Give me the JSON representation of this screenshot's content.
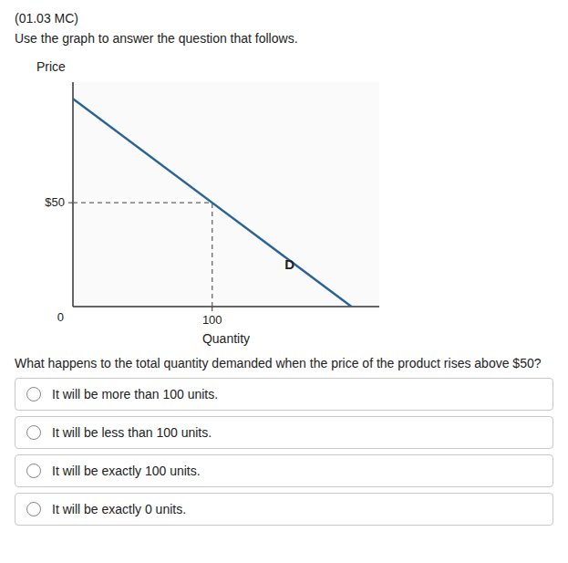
{
  "title": "(01.03 MC)",
  "instruction": "Use the graph to answer the question that follows.",
  "question": "What happens to the total quantity demanded when the price of the product rises above $50?",
  "choices": [
    "It will be more than 100 units.",
    "It will be less than 100 units.",
    "It will be exactly 100 units.",
    "It will be exactly 0 units."
  ],
  "chart_data": {
    "type": "line",
    "x_label": "Quantity",
    "y_label": "Price",
    "series": [
      {
        "x": [
          0,
          200
        ],
        "values": [
          100,
          0
        ],
        "color": "#2a6496",
        "line_style": "solid"
      },
      {
        "x": [
          100,
          100
        ],
        "values": [
          0,
          50
        ],
        "color": "#666666",
        "line_style": "dashed"
      },
      {
        "x": [
          0,
          100
        ],
        "values": [
          50,
          50
        ],
        "color": "#666666",
        "line_style": "dashed"
      }
    ],
    "annotations": [
      {
        "text": "D",
        "x": 152,
        "y": 18
      },
      {
        "text": "0",
        "x": 0,
        "y": 0
      }
    ],
    "xlim": [
      0,
      220
    ],
    "ylim": [
      0,
      108
    ],
    "xticks": [
      100
    ],
    "yticks": [
      {
        "value": 50,
        "label": "$50"
      }
    ],
    "grid": false
  }
}
